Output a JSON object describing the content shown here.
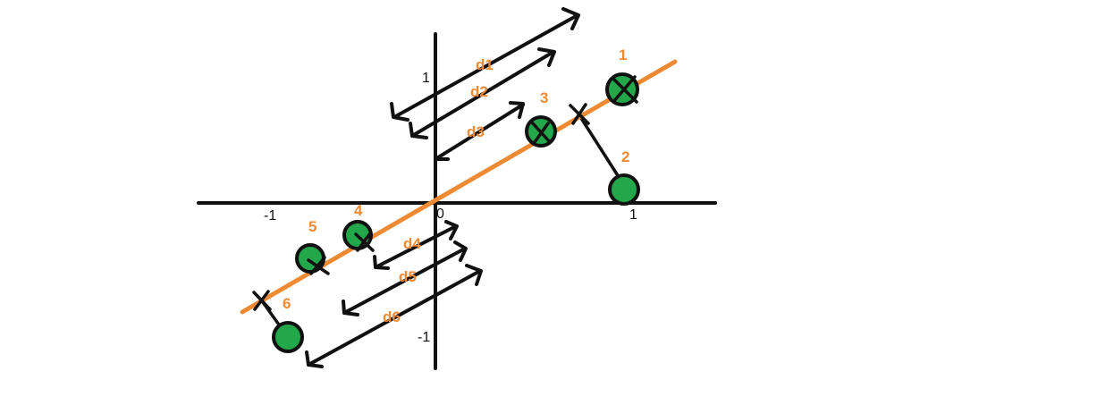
{
  "colors": {
    "axis": "#111111",
    "line": "#ef8a34",
    "point_fill": "#22a84a",
    "point_stroke": "#111111",
    "label": "#ef8a34",
    "arrow": "#111111"
  },
  "axis_labels": {
    "x_neg": "-1",
    "x_zero": "0",
    "x_pos": "1",
    "y_pos": "1",
    "y_neg": "-1"
  },
  "points": [
    {
      "label": "1",
      "x": 0.95,
      "y": 0.9
    },
    {
      "label": "2",
      "x": 0.93,
      "y": 0.12
    },
    {
      "label": "3",
      "x": 0.5,
      "y": 0.5
    },
    {
      "label": "4",
      "x": -0.37,
      "y": -0.27
    },
    {
      "label": "5",
      "x": -0.57,
      "y": -0.42
    },
    {
      "label": "6",
      "x": -0.7,
      "y": -1.0
    }
  ],
  "distances": [
    "d1",
    "d2",
    "d3",
    "d4",
    "d5",
    "d6"
  ]
}
